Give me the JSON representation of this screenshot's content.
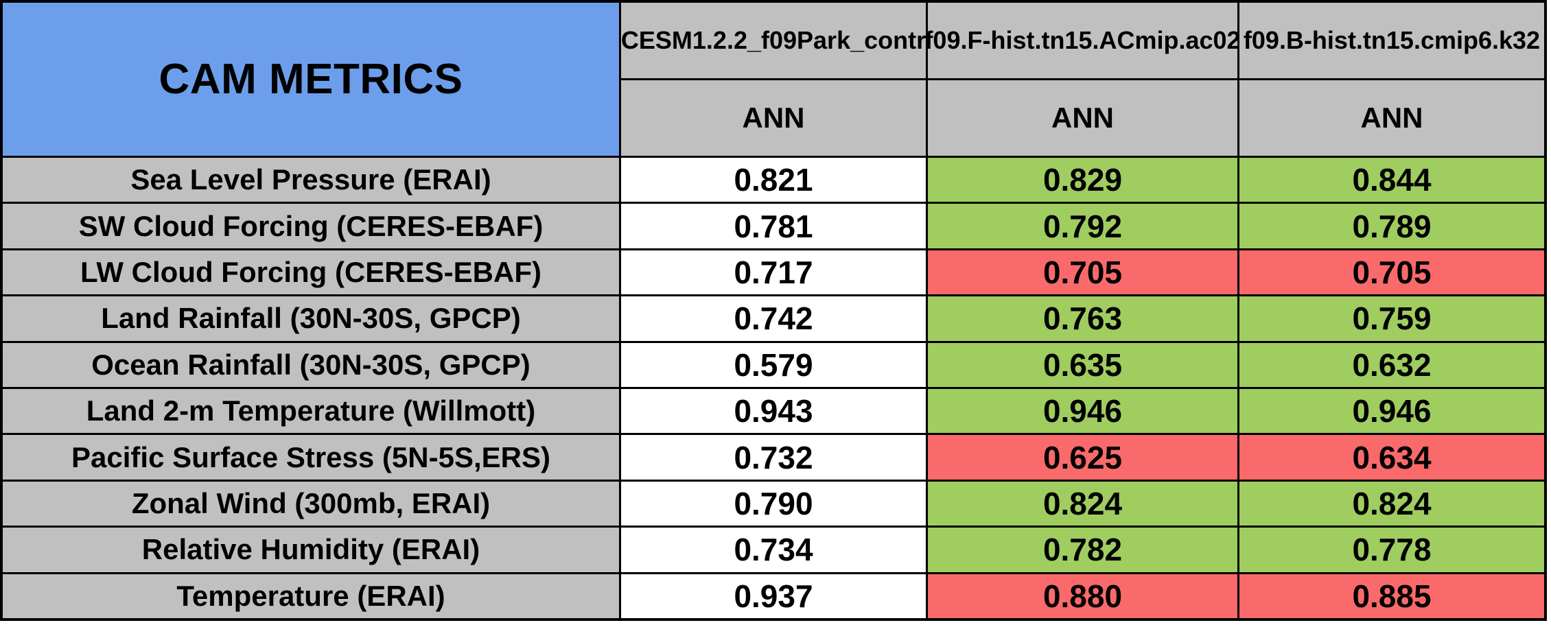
{
  "table": {
    "title": "CAM METRICS",
    "experiments": [
      {
        "name": "CESM1.2.2_f09Park_contr",
        "season": "ANN"
      },
      {
        "name": "f09.F-hist.tn15.ACmip.ac02",
        "season": "ANN"
      },
      {
        "name": "f09.B-hist.tn15.cmip6.k32",
        "season": "ANN"
      }
    ],
    "metrics": [
      {
        "label": "Sea Level Pressure (ERAI)",
        "values": [
          "0.821",
          "0.829",
          "0.844"
        ],
        "cell_colors": [
          "white",
          "green",
          "green"
        ]
      },
      {
        "label": "SW Cloud Forcing (CERES-EBAF)",
        "values": [
          "0.781",
          "0.792",
          "0.789"
        ],
        "cell_colors": [
          "white",
          "green",
          "green"
        ]
      },
      {
        "label": "LW Cloud Forcing (CERES-EBAF)",
        "values": [
          "0.717",
          "0.705",
          "0.705"
        ],
        "cell_colors": [
          "white",
          "red",
          "red"
        ]
      },
      {
        "label": "Land Rainfall (30N-30S, GPCP)",
        "values": [
          "0.742",
          "0.763",
          "0.759"
        ],
        "cell_colors": [
          "white",
          "green",
          "green"
        ]
      },
      {
        "label": "Ocean Rainfall (30N-30S, GPCP)",
        "values": [
          "0.579",
          "0.635",
          "0.632"
        ],
        "cell_colors": [
          "white",
          "green",
          "green"
        ]
      },
      {
        "label": "Land 2-m Temperature (Willmott)",
        "values": [
          "0.943",
          "0.946",
          "0.946"
        ],
        "cell_colors": [
          "white",
          "green",
          "green"
        ]
      },
      {
        "label": "Pacific Surface Stress (5N-5S,ERS)",
        "values": [
          "0.732",
          "0.625",
          "0.634"
        ],
        "cell_colors": [
          "white",
          "red",
          "red"
        ]
      },
      {
        "label": "Zonal Wind (300mb, ERAI)",
        "values": [
          "0.790",
          "0.824",
          "0.824"
        ],
        "cell_colors": [
          "white",
          "green",
          "green"
        ]
      },
      {
        "label": "Relative Humidity (ERAI)",
        "values": [
          "0.734",
          "0.782",
          "0.778"
        ],
        "cell_colors": [
          "white",
          "green",
          "green"
        ]
      },
      {
        "label": "Temperature (ERAI)",
        "values": [
          "0.937",
          "0.880",
          "0.885"
        ],
        "cell_colors": [
          "white",
          "red",
          "red"
        ]
      }
    ],
    "colors": {
      "title_bg": "#6D9EEB",
      "header_bg": "#C0C0C0",
      "white_bg": "#FFFFFF",
      "green_bg": "#A0CD5F",
      "red_bg": "#FA6A6A",
      "border": "#000000",
      "text": "#000000"
    }
  },
  "chart_data": {
    "type": "table",
    "title": "CAM METRICS",
    "columns": [
      "CESM1.2.2_f09Park_contr",
      "f09.F-hist.tn15.ACmip.ac02",
      "f09.B-hist.tn15.cmip6.k32"
    ],
    "column_season": [
      "ANN",
      "ANN",
      "ANN"
    ],
    "rows": [
      {
        "metric": "Sea Level Pressure (ERAI)",
        "values": [
          0.821,
          0.829,
          0.844
        ],
        "cell_colors": [
          "white",
          "green",
          "green"
        ]
      },
      {
        "metric": "SW Cloud Forcing (CERES-EBAF)",
        "values": [
          0.781,
          0.792,
          0.789
        ],
        "cell_colors": [
          "white",
          "green",
          "green"
        ]
      },
      {
        "metric": "LW Cloud Forcing (CERES-EBAF)",
        "values": [
          0.717,
          0.705,
          0.705
        ],
        "cell_colors": [
          "white",
          "red",
          "red"
        ]
      },
      {
        "metric": "Land Rainfall (30N-30S, GPCP)",
        "values": [
          0.742,
          0.763,
          0.759
        ],
        "cell_colors": [
          "white",
          "green",
          "green"
        ]
      },
      {
        "metric": "Ocean Rainfall (30N-30S, GPCP)",
        "values": [
          0.579,
          0.635,
          0.632
        ],
        "cell_colors": [
          "white",
          "green",
          "green"
        ]
      },
      {
        "metric": "Land 2-m Temperature (Willmott)",
        "values": [
          0.943,
          0.946,
          0.946
        ],
        "cell_colors": [
          "white",
          "green",
          "green"
        ]
      },
      {
        "metric": "Pacific Surface Stress (5N-5S,ERS)",
        "values": [
          0.732,
          0.625,
          0.634
        ],
        "cell_colors": [
          "white",
          "red",
          "red"
        ]
      },
      {
        "metric": "Zonal Wind (300mb, ERAI)",
        "values": [
          0.79,
          0.824,
          0.824
        ],
        "cell_colors": [
          "white",
          "green",
          "green"
        ]
      },
      {
        "metric": "Relative Humidity (ERAI)",
        "values": [
          0.734,
          0.782,
          0.778
        ],
        "cell_colors": [
          "white",
          "green",
          "green"
        ]
      },
      {
        "metric": "Temperature (ERAI)",
        "values": [
          0.937,
          0.88,
          0.885
        ],
        "cell_colors": [
          "white",
          "red",
          "red"
        ]
      }
    ]
  }
}
